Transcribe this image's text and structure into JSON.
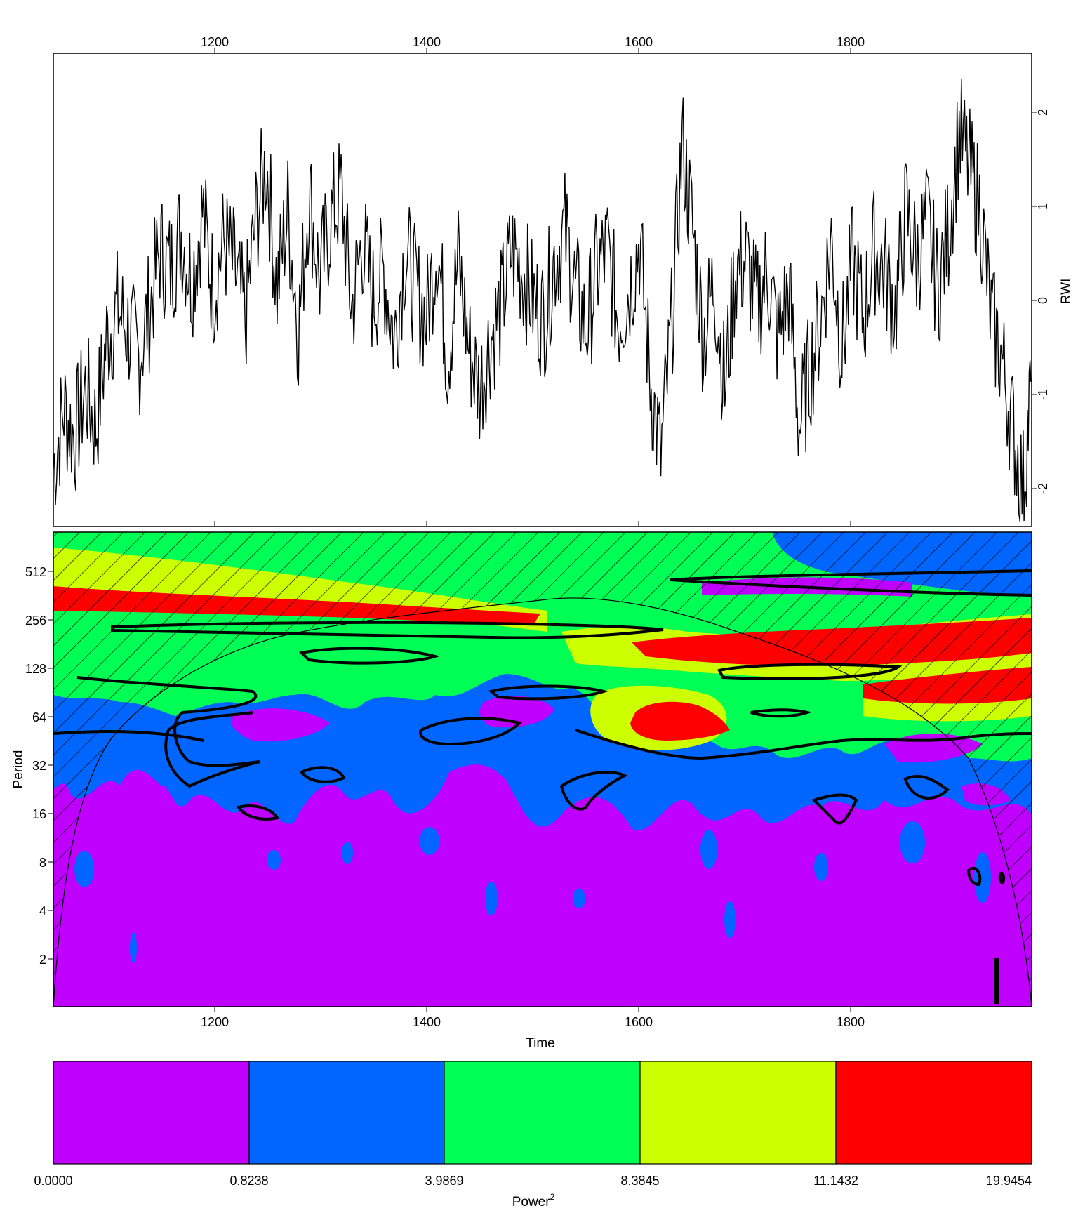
{
  "chart_data": [
    {
      "type": "line",
      "panel": "series",
      "title": "",
      "xlabel": "",
      "ylabel": "RWI",
      "xlim": [
        1050,
        1968
      ],
      "ylim": [
        -2.3,
        2.5
      ],
      "x_ticks": [
        1200,
        1400,
        1600,
        1800
      ],
      "y_ticks": [
        -2,
        -1,
        0,
        1,
        2
      ],
      "x_tick_labels": [
        "1200",
        "1400",
        "1600",
        "1800"
      ],
      "y_tick_labels": [
        "-2",
        "-1",
        "0",
        "1",
        "2"
      ],
      "line_color": "#000000",
      "series": [
        {
          "x": [
            1050,
            1060,
            1070,
            1080,
            1090,
            1100,
            1110,
            1120,
            1130,
            1140,
            1150,
            1160,
            1170,
            1180,
            1190,
            1200,
            1210,
            1220,
            1230,
            1240,
            1250,
            1260,
            1270,
            1280,
            1290,
            1300,
            1310,
            1320,
            1330,
            1340,
            1350,
            1360,
            1370,
            1380,
            1390,
            1400,
            1410,
            1420,
            1430,
            1440,
            1450,
            1460,
            1470,
            1480,
            1490,
            1500,
            1510,
            1520,
            1530,
            1540,
            1550,
            1560,
            1570,
            1580,
            1590,
            1600,
            1610,
            1620,
            1630,
            1640,
            1650,
            1660,
            1670,
            1680,
            1690,
            1700,
            1710,
            1720,
            1730,
            1740,
            1750,
            1760,
            1770,
            1780,
            1790,
            1800,
            1810,
            1820,
            1830,
            1840,
            1850,
            1860,
            1870,
            1880,
            1890,
            1900,
            1910,
            1920,
            1930,
            1940,
            1950,
            1960,
            1968
          ],
          "values": [
            -1.7,
            -1.1,
            -1.4,
            -0.9,
            -1.3,
            -0.4,
            -0.1,
            -0.3,
            -0.6,
            -0.1,
            0.5,
            0.3,
            0.7,
            0.2,
            0.9,
            0.1,
            0.6,
            0.3,
            -0.2,
            0.8,
            1.4,
            0.1,
            0.9,
            -0.3,
            1.1,
            0.2,
            0.8,
            1.1,
            -0.1,
            0.6,
            0.0,
            0.3,
            -0.4,
            0.5,
            0.1,
            -0.2,
            0.6,
            -0.6,
            0.4,
            -0.5,
            -0.9,
            -0.4,
            -0.1,
            0.5,
            0.3,
            0.0,
            -0.2,
            0.4,
            0.7,
            0.1,
            -0.3,
            0.3,
            0.5,
            -0.2,
            0.1,
            0.6,
            -0.8,
            -1.6,
            -0.3,
            1.6,
            0.7,
            -0.4,
            0.2,
            -0.9,
            0.3,
            0.4,
            -0.1,
            0.3,
            -0.4,
            0.1,
            -1.3,
            -0.7,
            -0.2,
            0.6,
            -0.5,
            0.4,
            -0.2,
            0.5,
            0.3,
            -0.1,
            0.9,
            0.4,
            0.8,
            0.1,
            0.7,
            1.7,
            1.3,
            0.9,
            -0.2,
            -0.6,
            -1.3,
            -1.9,
            -0.8
          ]
        }
      ]
    },
    {
      "type": "heatmap",
      "panel": "wavelet-power-spectrum",
      "title": "",
      "xlabel": "Time",
      "ylabel": "Period",
      "xlim": [
        1050,
        1968
      ],
      "y_scale": "log2",
      "ylim": [
        1,
        1024
      ],
      "x_ticks": [
        1200,
        1400,
        1600,
        1800
      ],
      "x_tick_labels": [
        "1200",
        "1400",
        "1600",
        "1800"
      ],
      "y_ticks": [
        2,
        4,
        8,
        16,
        32,
        64,
        128,
        256,
        512
      ],
      "y_tick_labels": [
        "2",
        "4",
        "8",
        "16",
        "32",
        "64",
        "128",
        "256",
        "512"
      ],
      "power_levels": [
        0.0,
        0.8238,
        3.9869,
        8.3845,
        11.1432,
        19.9454
      ],
      "level_colors": [
        "#c000ff",
        "#0066ff",
        "#00ff55",
        "#ccff00",
        "#ff0000"
      ],
      "features": [
        {
          "x_range": [
            1050,
            1460
          ],
          "period_range": [
            320,
            420
          ],
          "power_class": 4
        },
        {
          "x_range": [
            1600,
            1960
          ],
          "period_range": [
            150,
            240
          ],
          "power_class": 4
        },
        {
          "x_range": [
            1840,
            1968
          ],
          "period_range": [
            70,
            110
          ],
          "power_class": 4
        },
        {
          "x_range": [
            1590,
            1680
          ],
          "period_range": [
            50,
            75
          ],
          "power_class": 4
        },
        {
          "x_range": [
            1520,
            1700
          ],
          "period_range": [
            100,
            200
          ],
          "power_class": 3
        },
        {
          "x_range": [
            1690,
            1968
          ],
          "period_range": [
            400,
            560
          ],
          "power_class": 1
        },
        {
          "x_range": [
            1100,
            1550
          ],
          "period_range": [
            220,
            260
          ],
          "power_class": 1
        }
      ],
      "cone_of_influence": true,
      "significance_contours": true
    },
    {
      "type": "colorbar",
      "panel": "legend",
      "xlabel": "Power",
      "xlabel_sup": "2",
      "tick_labels": [
        "0.0000",
        "0.8238",
        "3.9869",
        "8.3845",
        "11.1432",
        "19.9454"
      ],
      "colors": [
        "#c000ff",
        "#0066ff",
        "#00ff55",
        "#ccff00",
        "#ff0000"
      ]
    }
  ]
}
